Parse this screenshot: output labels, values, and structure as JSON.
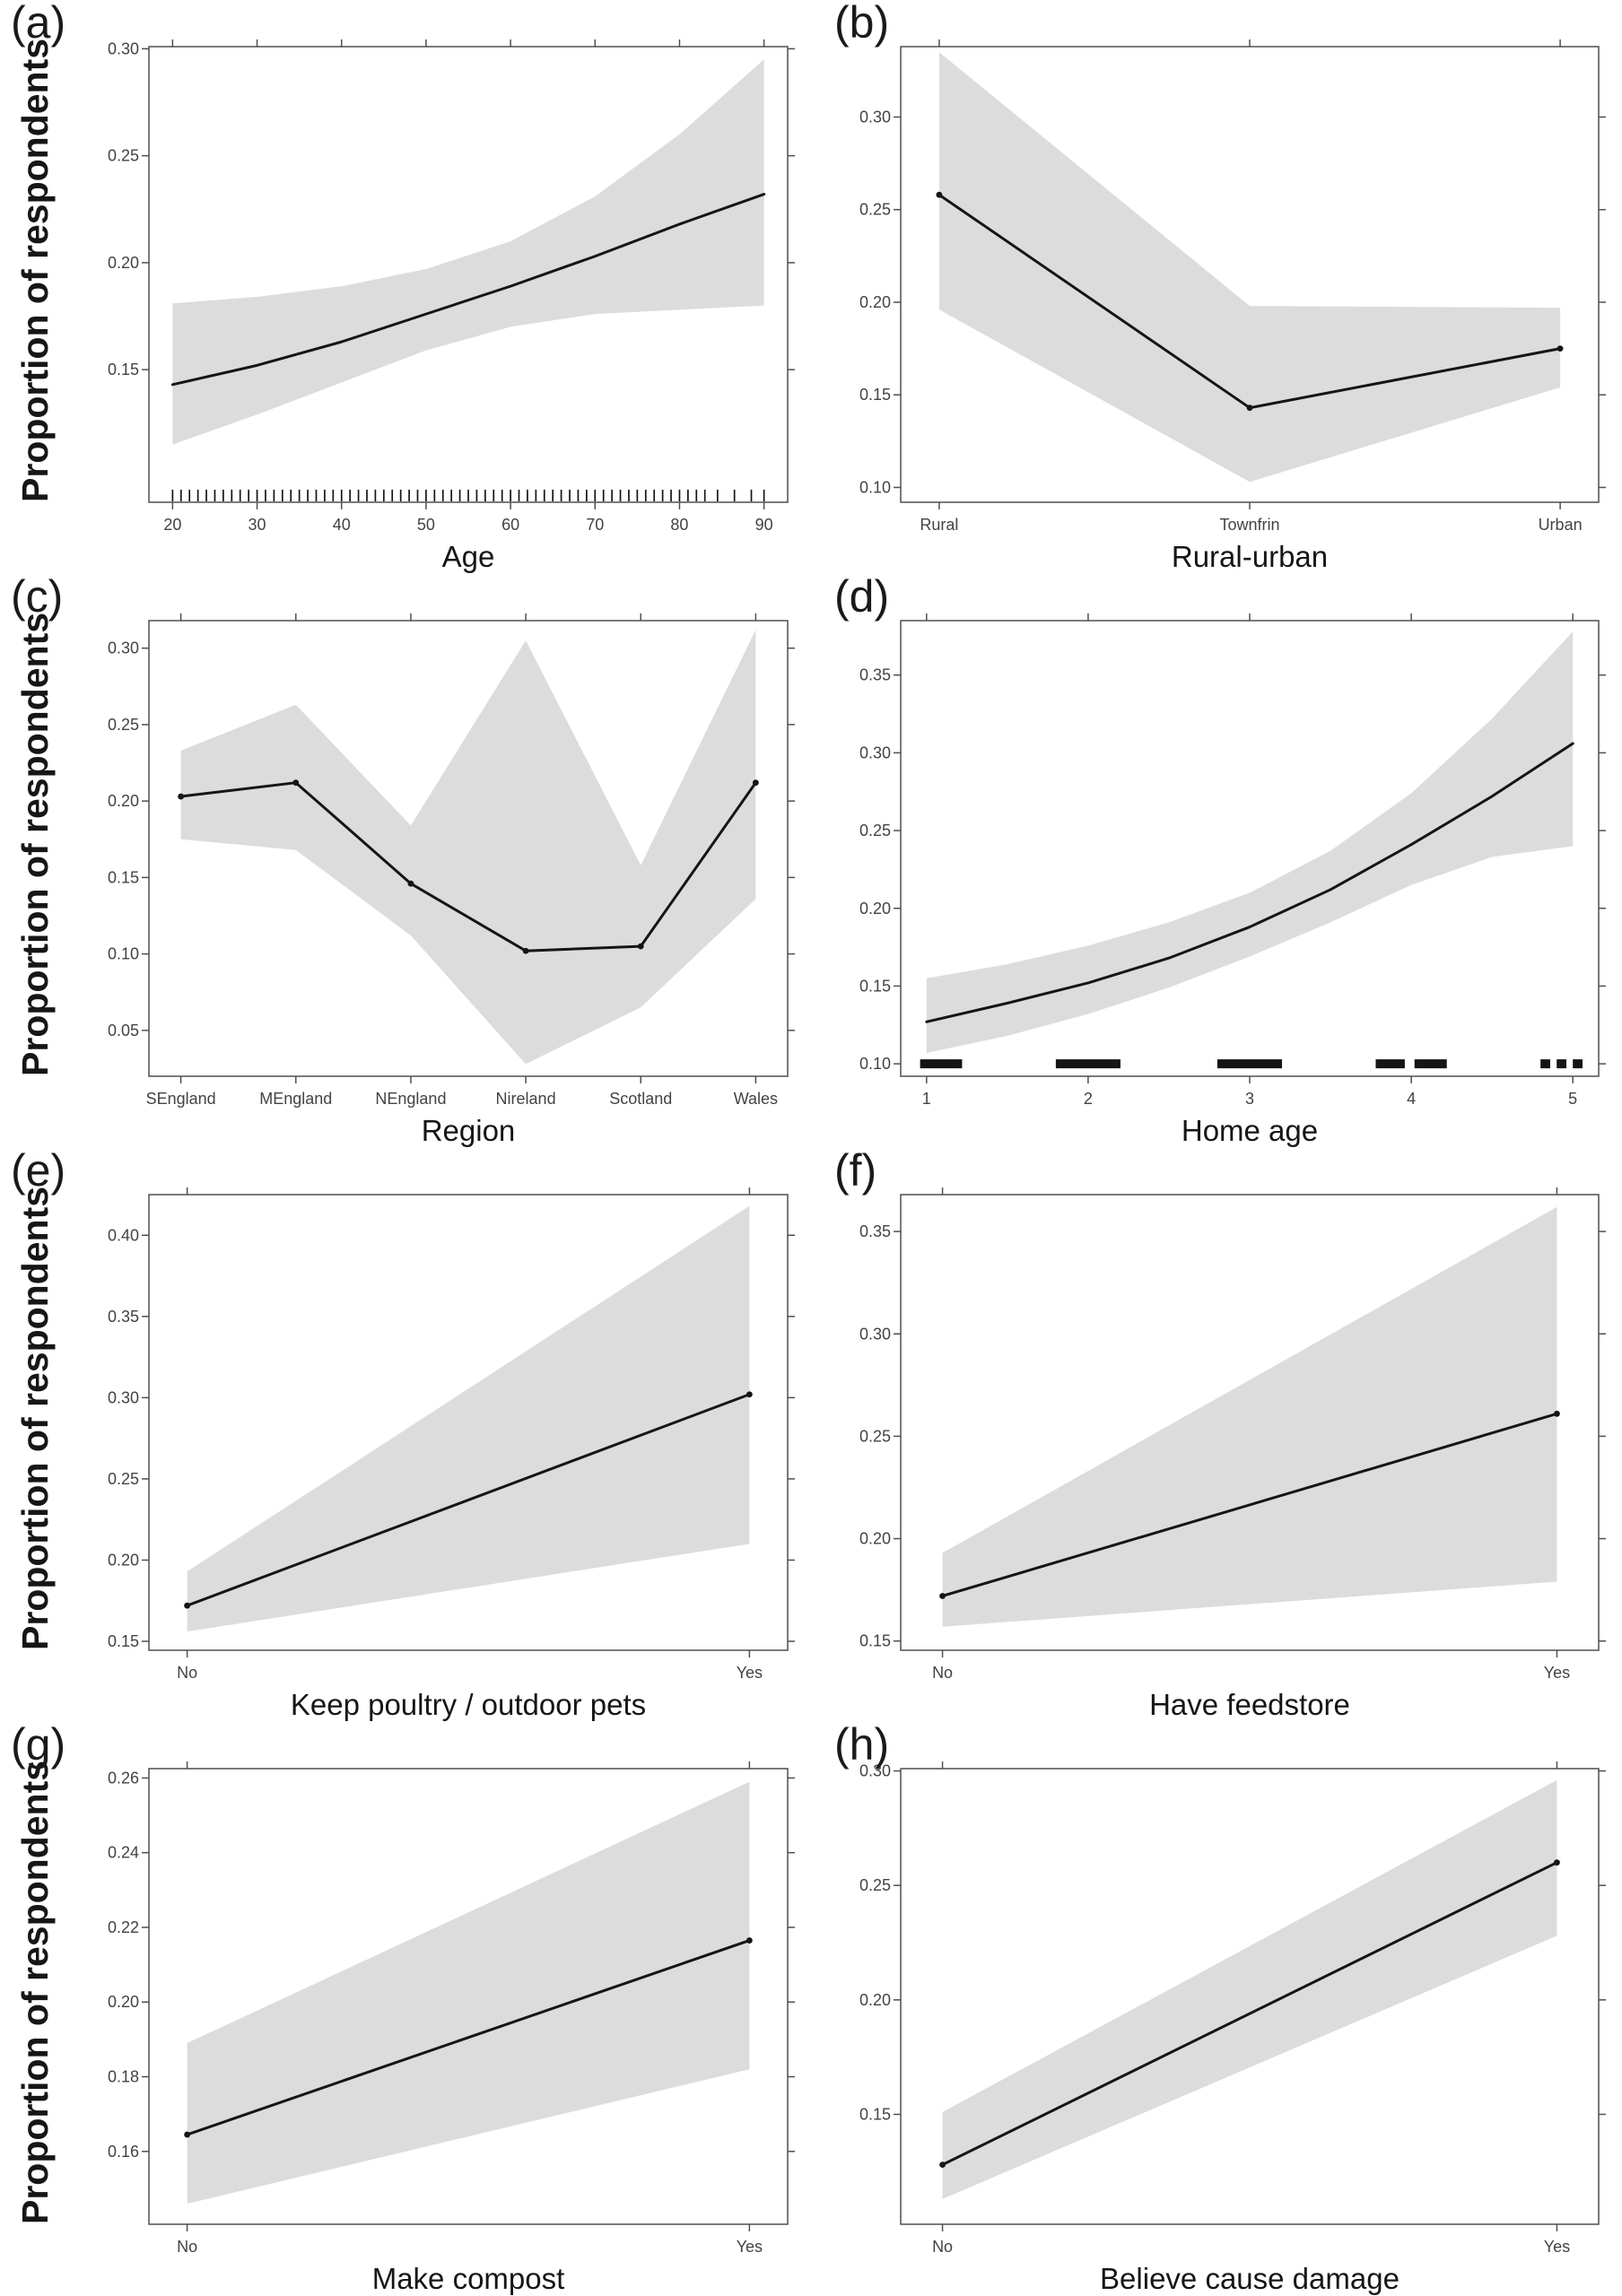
{
  "figure": {
    "description_y_axis_title": "Proportion of respondents"
  },
  "style": {
    "background_color": "#ffffff",
    "band_color": "#dcdcdc",
    "line_color": "#151515",
    "axis_color": "#4f4f4f",
    "tick_label_color": "#434343",
    "title_color": "#161616"
  },
  "charts": [
    {
      "panel_label": "(a)",
      "type": "line",
      "x_title": "Age",
      "y_title": "Proportion of respondents",
      "xlim": [
        17.2,
        92.8
      ],
      "x_ticks": [
        20,
        30,
        40,
        50,
        60,
        70,
        80,
        90
      ],
      "ylim": [
        0.088,
        0.301
      ],
      "y_ticks": [
        0.15,
        0.2,
        0.25,
        0.3
      ],
      "y_tick_labels": [
        "0.15",
        "0.20",
        "0.25",
        "0.30"
      ],
      "line": {
        "x": [
          20,
          30,
          40,
          50,
          60,
          70,
          80,
          90
        ],
        "y": [
          0.143,
          0.152,
          0.163,
          0.176,
          0.189,
          0.203,
          0.218,
          0.232
        ]
      },
      "band": {
        "x": [
          20,
          30,
          40,
          50,
          60,
          70,
          80,
          90
        ],
        "upper": [
          0.181,
          0.184,
          0.189,
          0.197,
          0.21,
          0.231,
          0.26,
          0.295
        ],
        "lower": [
          0.115,
          0.129,
          0.144,
          0.159,
          0.17,
          0.176,
          0.178,
          0.18
        ]
      },
      "markers": false,
      "rug": {
        "style": "ticks",
        "x": [
          20,
          21,
          22,
          23,
          24,
          25,
          26,
          27,
          28,
          29,
          30,
          31,
          32,
          33,
          34,
          35,
          36,
          37,
          38,
          39,
          40,
          41,
          42,
          43,
          44,
          45,
          46,
          47,
          48,
          49,
          50,
          51,
          52,
          53,
          54,
          55,
          56,
          57,
          58,
          59,
          60,
          61,
          62,
          63,
          64,
          65,
          66,
          67,
          68,
          69,
          70,
          71,
          72,
          73,
          74,
          75,
          76,
          77,
          78,
          79,
          80,
          81,
          82,
          83,
          84.5,
          86.5,
          88.5,
          90
        ]
      }
    },
    {
      "panel_label": "(b)",
      "type": "line",
      "x_title": "Rural-urban",
      "categories": [
        "Rural",
        "Townfrin",
        "Urban"
      ],
      "ylim": [
        0.092,
        0.338
      ],
      "y_ticks": [
        0.1,
        0.15,
        0.2,
        0.25,
        0.3
      ],
      "y_tick_labels": [
        "0.10",
        "0.15",
        "0.20",
        "0.25",
        "0.30"
      ],
      "line": {
        "y": [
          0.258,
          0.143,
          0.175
        ]
      },
      "band": {
        "upper": [
          0.335,
          0.198,
          0.197
        ],
        "lower": [
          0.196,
          0.103,
          0.154
        ]
      },
      "markers": true
    },
    {
      "panel_label": "(c)",
      "type": "line",
      "x_title": "Region",
      "y_title": "Proportion of respondents",
      "categories": [
        "SEngland",
        "MEngland",
        "NEngland",
        "Nireland",
        "Scotland",
        "Wales"
      ],
      "ylim": [
        0.02,
        0.318
      ],
      "y_ticks": [
        0.05,
        0.1,
        0.15,
        0.2,
        0.25,
        0.3
      ],
      "y_tick_labels": [
        "0.05",
        "0.10",
        "0.15",
        "0.20",
        "0.25",
        "0.30"
      ],
      "line": {
        "y": [
          0.203,
          0.212,
          0.146,
          0.102,
          0.105,
          0.212
        ]
      },
      "band": {
        "upper": [
          0.233,
          0.263,
          0.184,
          0.305,
          0.158,
          0.312
        ],
        "lower": [
          0.175,
          0.168,
          0.112,
          0.028,
          0.065,
          0.136
        ]
      },
      "markers": true
    },
    {
      "panel_label": "(d)",
      "type": "line",
      "x_title": "Home age",
      "xlim": [
        0.84,
        5.16
      ],
      "x_ticks": [
        1,
        2,
        3,
        4,
        5
      ],
      "ylim": [
        0.092,
        0.385
      ],
      "y_ticks": [
        0.1,
        0.15,
        0.2,
        0.25,
        0.3,
        0.35
      ],
      "y_tick_labels": [
        "0.10",
        "0.15",
        "0.20",
        "0.25",
        "0.30",
        "0.35"
      ],
      "line": {
        "x": [
          1,
          1.5,
          2,
          2.5,
          3,
          3.5,
          4,
          4.5,
          5
        ],
        "y": [
          0.127,
          0.139,
          0.152,
          0.168,
          0.188,
          0.212,
          0.241,
          0.272,
          0.306
        ]
      },
      "band": {
        "x": [
          1,
          1.5,
          2,
          2.5,
          3,
          3.5,
          4,
          4.5,
          5
        ],
        "upper": [
          0.155,
          0.164,
          0.176,
          0.191,
          0.21,
          0.237,
          0.274,
          0.322,
          0.378
        ],
        "lower": [
          0.107,
          0.118,
          0.132,
          0.149,
          0.169,
          0.191,
          0.215,
          0.233,
          0.24
        ]
      },
      "markers": false,
      "rug": {
        "style": "blocks",
        "y": 0.1,
        "segments": [
          [
            0.96,
            1.22
          ],
          [
            1.8,
            2.2
          ],
          [
            2.8,
            3.2
          ],
          [
            3.78,
            3.96
          ],
          [
            4.02,
            4.22
          ],
          [
            4.8,
            4.86
          ],
          [
            4.9,
            4.96
          ],
          [
            5.0,
            5.06
          ]
        ]
      }
    },
    {
      "panel_label": "(e)",
      "type": "line",
      "x_title": "Keep poultry / outdoor pets",
      "y_title": "Proportion of respondents",
      "categories": [
        "No",
        "Yes"
      ],
      "ylim": [
        0.1445,
        0.425
      ],
      "y_ticks": [
        0.15,
        0.2,
        0.25,
        0.3,
        0.35,
        0.4
      ],
      "y_tick_labels": [
        "0.15",
        "0.20",
        "0.25",
        "0.30",
        "0.35",
        "0.40"
      ],
      "line": {
        "y": [
          0.172,
          0.302
        ]
      },
      "band": {
        "upper": [
          0.193,
          0.418
        ],
        "lower": [
          0.156,
          0.21
        ]
      },
      "markers": true
    },
    {
      "panel_label": "(f)",
      "type": "line",
      "x_title": "Have feedstore",
      "categories": [
        "No",
        "Yes"
      ],
      "ylim": [
        0.1455,
        0.368
      ],
      "y_ticks": [
        0.15,
        0.2,
        0.25,
        0.3,
        0.35
      ],
      "y_tick_labels": [
        "0.15",
        "0.20",
        "0.25",
        "0.30",
        "0.35"
      ],
      "line": {
        "y": [
          0.172,
          0.261
        ]
      },
      "band": {
        "upper": [
          0.193,
          0.362
        ],
        "lower": [
          0.157,
          0.179
        ]
      },
      "markers": true
    },
    {
      "panel_label": "(g)",
      "type": "line",
      "x_title": "Make compost",
      "y_title": "Proportion of respondents",
      "categories": [
        "No",
        "Yes"
      ],
      "ylim": [
        0.1405,
        0.2625
      ],
      "y_ticks": [
        0.16,
        0.18,
        0.2,
        0.22,
        0.24,
        0.26
      ],
      "y_tick_labels": [
        "0.16",
        "0.18",
        "0.20",
        "0.22",
        "0.24",
        "0.26"
      ],
      "line": {
        "y": [
          0.1645,
          0.2165
        ]
      },
      "band": {
        "upper": [
          0.189,
          0.259
        ],
        "lower": [
          0.146,
          0.182
        ]
      },
      "markers": true
    },
    {
      "panel_label": "(h)",
      "type": "line",
      "x_title": "Believe cause damage",
      "categories": [
        "No",
        "Yes"
      ],
      "ylim": [
        0.102,
        0.301
      ],
      "y_ticks": [
        0.15,
        0.2,
        0.25,
        0.3
      ],
      "y_tick_labels": [
        "0.15",
        "0.20",
        "0.25",
        "0.30"
      ],
      "line": {
        "y": [
          0.128,
          0.26
        ]
      },
      "band": {
        "upper": [
          0.151,
          0.296
        ],
        "lower": [
          0.113,
          0.228
        ]
      },
      "markers": true
    }
  ]
}
